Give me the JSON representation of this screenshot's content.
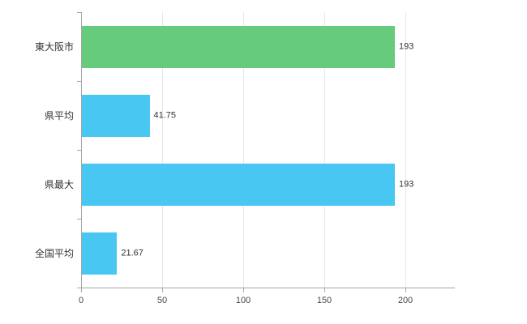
{
  "chart_data": {
    "type": "bar",
    "orientation": "horizontal",
    "title": "",
    "xlabel": "",
    "ylabel": "",
    "categories": [
      "東大阪市",
      "県平均",
      "県最大",
      "全国平均"
    ],
    "values": [
      193,
      41.75,
      193,
      21.67
    ],
    "value_labels": [
      "193",
      "41.75",
      "193",
      "21.67"
    ],
    "bar_colors": [
      "#66cb7c",
      "#47c7f2",
      "#47c7f2",
      "#47c7f2"
    ],
    "xlim": [
      0,
      230
    ],
    "x_ticks": [
      0,
      50,
      100,
      150,
      200
    ],
    "grid": true,
    "legend": "none",
    "background_color": "#ffffff",
    "axis_color": "#a6a6a6",
    "gridline_color": "#e6e6e6"
  }
}
